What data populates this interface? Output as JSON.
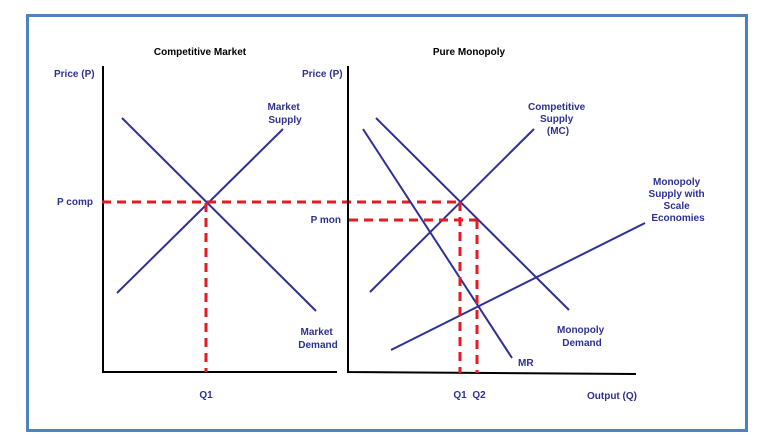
{
  "left_panel": {
    "title": "Competitive Market",
    "y_axis_label": "Price (P)",
    "price_label": "P comp",
    "quantity_label": "Q1",
    "supply_label": [
      "Market",
      "Supply"
    ],
    "demand_label": [
      "Market",
      "Demand"
    ]
  },
  "right_panel": {
    "title": "Pure Monopoly",
    "y_axis_label": "Price (P)",
    "price_label": "P mon",
    "quantity_labels": [
      "Q1",
      "Q2"
    ],
    "x_axis_label": "Output (Q)",
    "competitive_supply_label": [
      "Competitive",
      "Supply",
      "(MC)"
    ],
    "monopoly_supply_label": [
      "Monopoly",
      "Supply with",
      "Scale",
      "Economies"
    ],
    "monopoly_demand_label": [
      "Monopoly",
      "Demand"
    ],
    "mr_label": "MR"
  },
  "colors": {
    "curve": "#2e3192",
    "dashed_guide": "#e31b23",
    "frame_border": "#4f81bd",
    "axis": "#000000"
  }
}
